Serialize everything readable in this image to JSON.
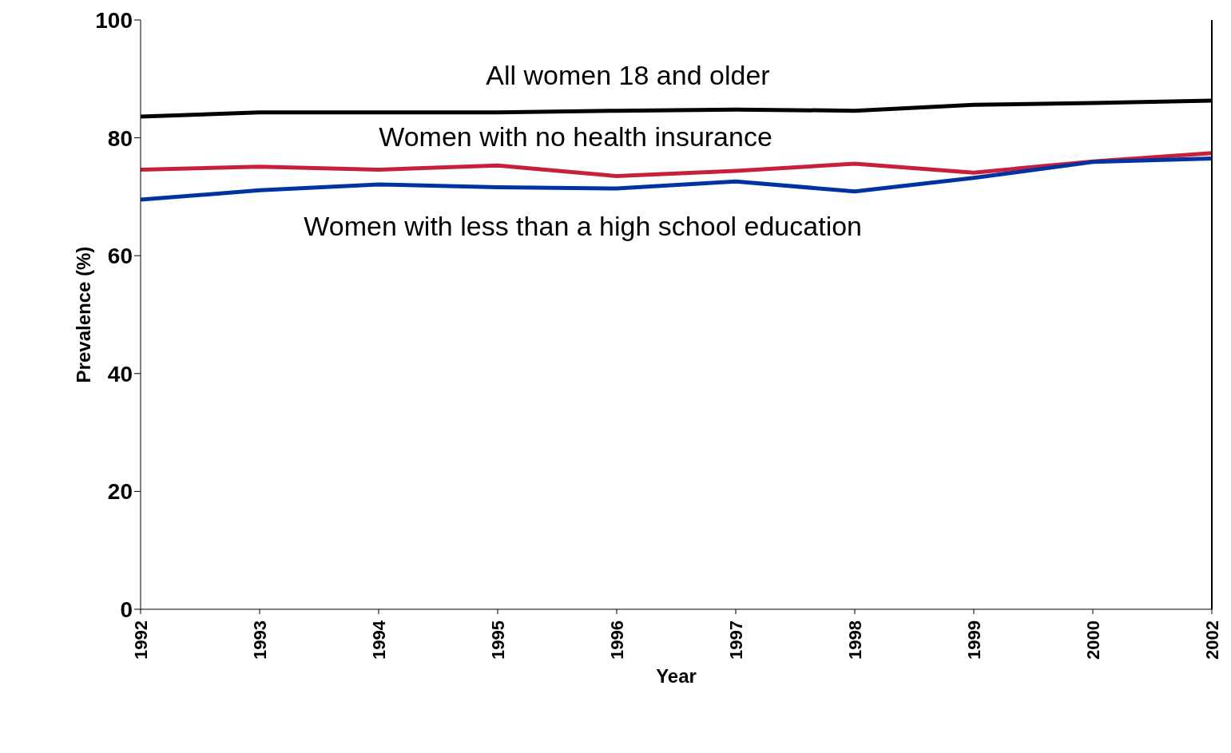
{
  "chart_data": {
    "type": "line",
    "xlabel": "Year",
    "ylabel": "Prevalence (%)",
    "categories": [
      "1992",
      "1993",
      "1994",
      "1995",
      "1996",
      "1997",
      "1998",
      "1999",
      "2000",
      "2002"
    ],
    "ylim": [
      0,
      100
    ],
    "yticks": [
      0,
      20,
      40,
      60,
      80,
      100
    ],
    "grid": false,
    "legend": false,
    "marker": "none",
    "line_style": "solid",
    "series": [
      {
        "name": "All women 18 and older",
        "color": "#000000",
        "values": [
          83.6,
          84.3,
          84.3,
          84.3,
          84.6,
          84.8,
          84.6,
          85.6,
          85.9,
          86.3
        ]
      },
      {
        "name": "Women with no health insurance",
        "color": "#c8203c",
        "values": [
          74.6,
          75.1,
          74.6,
          75.3,
          73.5,
          74.4,
          75.6,
          74.1,
          76.0,
          77.4
        ]
      },
      {
        "name": "Women with less than a high school education",
        "color": "#0033a0",
        "values": [
          69.5,
          71.1,
          72.1,
          71.6,
          71.4,
          72.6,
          70.9,
          73.2,
          75.9,
          76.5
        ]
      }
    ]
  }
}
